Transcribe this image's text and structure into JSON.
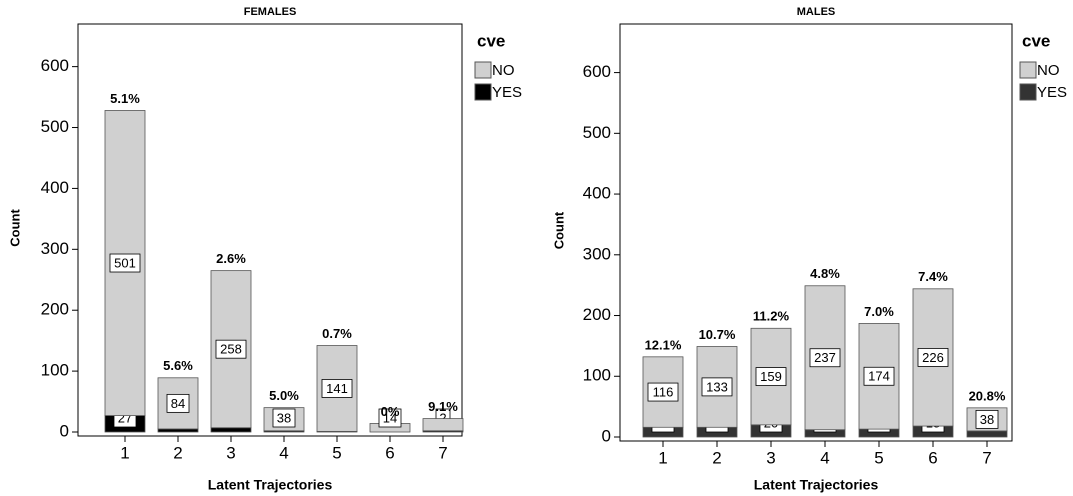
{
  "chart_data": [
    {
      "type": "bar",
      "stacked": true,
      "title": "FEMALES",
      "xlabel": "Latent Trajectories",
      "ylabel": "Count",
      "legend_title": "cve",
      "categories": [
        "1",
        "2",
        "3",
        "4",
        "5",
        "6",
        "7"
      ],
      "series": [
        {
          "name": "NO",
          "color": "#d0d0d0",
          "values": [
            501,
            84,
            258,
            38,
            141,
            14,
            20
          ],
          "value_labels": [
            "501",
            "84",
            "258",
            "38",
            "141",
            "14",
            null
          ]
        },
        {
          "name": "YES",
          "color": "#000000",
          "values": [
            27,
            5,
            7,
            2,
            1,
            0,
            2
          ],
          "value_labels": [
            "27",
            null,
            "7",
            null,
            "1",
            null,
            "2"
          ]
        }
      ],
      "top_labels": [
        "5.1%",
        "5.6%",
        "2.6%",
        "5.0%",
        "0.7%",
        "0%",
        "9.1%"
      ],
      "ylim": [
        0,
        670
      ],
      "yticks": [
        0,
        100,
        200,
        300,
        400,
        500,
        600
      ]
    },
    {
      "type": "bar",
      "stacked": true,
      "title": "MALES",
      "xlabel": "Latent Trajectories",
      "ylabel": "Count",
      "legend_title": "cve",
      "categories": [
        "1",
        "2",
        "3",
        "4",
        "5",
        "6",
        "7"
      ],
      "series": [
        {
          "name": "NO",
          "color": "#d0d0d0",
          "values": [
            116,
            133,
            159,
            237,
            174,
            226,
            38
          ],
          "value_labels": [
            "116",
            "133",
            "159",
            "237",
            "174",
            "226",
            "38"
          ]
        },
        {
          "name": "YES",
          "color": "#333333",
          "values": [
            16,
            16,
            20,
            12,
            13,
            18,
            10
          ],
          "value_labels": [
            "16",
            "16",
            "20",
            "12",
            "13",
            "18",
            null
          ]
        }
      ],
      "top_labels": [
        "12.1%",
        "10.7%",
        "11.2%",
        "4.8%",
        "7.0%",
        "7.4%",
        "20.8%"
      ],
      "ylim": [
        0,
        680
      ],
      "yticks": [
        0,
        100,
        200,
        300,
        400,
        500,
        600
      ]
    }
  ]
}
